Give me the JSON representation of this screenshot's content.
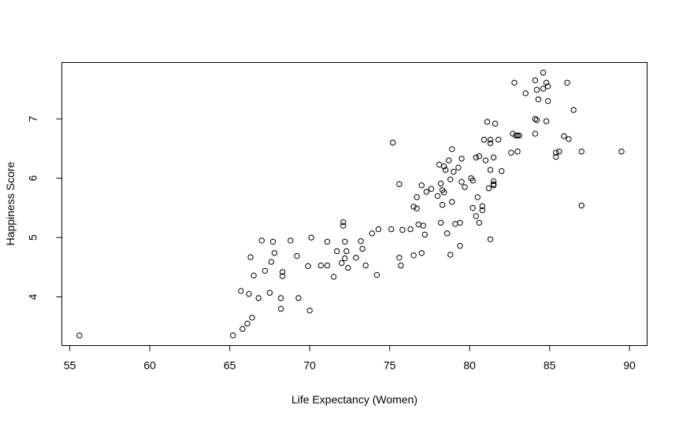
{
  "chart_data": {
    "type": "scatter",
    "title": "",
    "xlabel": "Life Expectancy (Women)",
    "ylabel": "Happiness Score",
    "xlim": [
      54.5,
      91.1
    ],
    "ylim": [
      3.18,
      7.95
    ],
    "xticks": [
      55,
      60,
      65,
      70,
      75,
      80,
      85,
      90
    ],
    "yticks": [
      4,
      5,
      6,
      7
    ],
    "grid": false,
    "marker": "open-circle",
    "marker_color": "#000000",
    "points": [
      {
        "x": 55.6,
        "y": 3.35
      },
      {
        "x": 65.2,
        "y": 3.35
      },
      {
        "x": 65.8,
        "y": 3.46
      },
      {
        "x": 66.1,
        "y": 3.55
      },
      {
        "x": 66.4,
        "y": 3.65
      },
      {
        "x": 68.2,
        "y": 3.8
      },
      {
        "x": 70.0,
        "y": 3.77
      },
      {
        "x": 69.3,
        "y": 3.98
      },
      {
        "x": 68.2,
        "y": 3.98
      },
      {
        "x": 66.8,
        "y": 3.98
      },
      {
        "x": 66.2,
        "y": 4.05
      },
      {
        "x": 65.7,
        "y": 4.1
      },
      {
        "x": 67.5,
        "y": 4.07
      },
      {
        "x": 66.5,
        "y": 4.36
      },
      {
        "x": 68.3,
        "y": 4.35
      },
      {
        "x": 68.3,
        "y": 4.42
      },
      {
        "x": 67.2,
        "y": 4.44
      },
      {
        "x": 66.3,
        "y": 4.67
      },
      {
        "x": 67.6,
        "y": 4.59
      },
      {
        "x": 67.8,
        "y": 4.74
      },
      {
        "x": 67.0,
        "y": 4.95
      },
      {
        "x": 67.7,
        "y": 4.93
      },
      {
        "x": 68.8,
        "y": 4.95
      },
      {
        "x": 69.2,
        "y": 4.69
      },
      {
        "x": 69.9,
        "y": 4.52
      },
      {
        "x": 70.1,
        "y": 5.0
      },
      {
        "x": 70.7,
        "y": 4.53
      },
      {
        "x": 71.1,
        "y": 4.53
      },
      {
        "x": 71.1,
        "y": 4.93
      },
      {
        "x": 71.5,
        "y": 4.34
      },
      {
        "x": 71.7,
        "y": 4.77
      },
      {
        "x": 72.0,
        "y": 4.57
      },
      {
        "x": 72.2,
        "y": 4.65
      },
      {
        "x": 72.4,
        "y": 4.49
      },
      {
        "x": 72.3,
        "y": 4.77
      },
      {
        "x": 72.2,
        "y": 4.93
      },
      {
        "x": 72.1,
        "y": 5.2
      },
      {
        "x": 72.1,
        "y": 5.26
      },
      {
        "x": 72.9,
        "y": 4.66
      },
      {
        "x": 73.2,
        "y": 4.94
      },
      {
        "x": 73.3,
        "y": 4.81
      },
      {
        "x": 73.5,
        "y": 4.53
      },
      {
        "x": 73.9,
        "y": 5.07
      },
      {
        "x": 74.2,
        "y": 4.37
      },
      {
        "x": 74.3,
        "y": 5.14
      },
      {
        "x": 75.1,
        "y": 5.14
      },
      {
        "x": 75.2,
        "y": 6.6
      },
      {
        "x": 75.6,
        "y": 5.9
      },
      {
        "x": 75.6,
        "y": 4.66
      },
      {
        "x": 75.7,
        "y": 4.53
      },
      {
        "x": 75.8,
        "y": 5.13
      },
      {
        "x": 76.3,
        "y": 5.14
      },
      {
        "x": 76.5,
        "y": 5.52
      },
      {
        "x": 76.5,
        "y": 4.7
      },
      {
        "x": 76.7,
        "y": 5.49
      },
      {
        "x": 76.7,
        "y": 5.68
      },
      {
        "x": 76.8,
        "y": 5.22
      },
      {
        "x": 77.0,
        "y": 5.88
      },
      {
        "x": 77.0,
        "y": 4.74
      },
      {
        "x": 77.1,
        "y": 5.2
      },
      {
        "x": 77.2,
        "y": 5.05
      },
      {
        "x": 77.3,
        "y": 5.77
      },
      {
        "x": 77.6,
        "y": 5.82
      },
      {
        "x": 78.0,
        "y": 5.7
      },
      {
        "x": 78.1,
        "y": 6.23
      },
      {
        "x": 78.2,
        "y": 5.25
      },
      {
        "x": 78.2,
        "y": 5.91
      },
      {
        "x": 78.3,
        "y": 5.8
      },
      {
        "x": 78.3,
        "y": 5.55
      },
      {
        "x": 78.4,
        "y": 5.76
      },
      {
        "x": 78.4,
        "y": 6.2
      },
      {
        "x": 78.5,
        "y": 6.14
      },
      {
        "x": 78.6,
        "y": 5.07
      },
      {
        "x": 78.7,
        "y": 6.3
      },
      {
        "x": 78.8,
        "y": 5.98
      },
      {
        "x": 78.8,
        "y": 4.71
      },
      {
        "x": 78.9,
        "y": 6.49
      },
      {
        "x": 78.9,
        "y": 5.6
      },
      {
        "x": 79.0,
        "y": 6.11
      },
      {
        "x": 79.1,
        "y": 5.23
      },
      {
        "x": 79.3,
        "y": 6.18
      },
      {
        "x": 79.4,
        "y": 4.86
      },
      {
        "x": 79.4,
        "y": 5.25
      },
      {
        "x": 79.5,
        "y": 5.94
      },
      {
        "x": 79.5,
        "y": 6.33
      },
      {
        "x": 79.7,
        "y": 5.85
      },
      {
        "x": 80.1,
        "y": 6.0
      },
      {
        "x": 80.2,
        "y": 5.96
      },
      {
        "x": 80.2,
        "y": 5.5
      },
      {
        "x": 80.4,
        "y": 5.36
      },
      {
        "x": 80.4,
        "y": 6.35
      },
      {
        "x": 80.5,
        "y": 5.68
      },
      {
        "x": 80.6,
        "y": 5.25
      },
      {
        "x": 80.6,
        "y": 6.37
      },
      {
        "x": 80.8,
        "y": 5.46
      },
      {
        "x": 80.8,
        "y": 5.53
      },
      {
        "x": 80.9,
        "y": 6.65
      },
      {
        "x": 81.0,
        "y": 6.3
      },
      {
        "x": 81.1,
        "y": 6.95
      },
      {
        "x": 81.2,
        "y": 5.83
      },
      {
        "x": 81.3,
        "y": 6.59
      },
      {
        "x": 81.3,
        "y": 4.97
      },
      {
        "x": 81.3,
        "y": 6.14
      },
      {
        "x": 81.3,
        "y": 6.65
      },
      {
        "x": 81.5,
        "y": 5.9
      },
      {
        "x": 81.5,
        "y": 5.95
      },
      {
        "x": 81.5,
        "y": 5.88
      },
      {
        "x": 81.5,
        "y": 6.35
      },
      {
        "x": 81.6,
        "y": 6.92
      },
      {
        "x": 81.8,
        "y": 6.65
      },
      {
        "x": 82.0,
        "y": 6.12
      },
      {
        "x": 82.6,
        "y": 6.43
      },
      {
        "x": 82.7,
        "y": 6.75
      },
      {
        "x": 82.8,
        "y": 7.61
      },
      {
        "x": 82.9,
        "y": 6.72
      },
      {
        "x": 83.0,
        "y": 6.45
      },
      {
        "x": 83.0,
        "y": 6.72
      },
      {
        "x": 83.1,
        "y": 6.72
      },
      {
        "x": 83.5,
        "y": 7.43
      },
      {
        "x": 84.1,
        "y": 7.65
      },
      {
        "x": 84.1,
        "y": 6.75
      },
      {
        "x": 84.1,
        "y": 7.0
      },
      {
        "x": 84.2,
        "y": 7.49
      },
      {
        "x": 84.2,
        "y": 6.98
      },
      {
        "x": 84.3,
        "y": 7.33
      },
      {
        "x": 84.6,
        "y": 7.78
      },
      {
        "x": 84.6,
        "y": 7.51
      },
      {
        "x": 84.8,
        "y": 7.61
      },
      {
        "x": 84.8,
        "y": 6.96
      },
      {
        "x": 84.9,
        "y": 7.55
      },
      {
        "x": 84.9,
        "y": 7.3
      },
      {
        "x": 85.4,
        "y": 6.36
      },
      {
        "x": 85.4,
        "y": 6.43
      },
      {
        "x": 85.6,
        "y": 6.45
      },
      {
        "x": 85.9,
        "y": 6.71
      },
      {
        "x": 86.1,
        "y": 7.61
      },
      {
        "x": 86.2,
        "y": 6.66
      },
      {
        "x": 86.5,
        "y": 7.15
      },
      {
        "x": 87.0,
        "y": 6.45
      },
      {
        "x": 87.0,
        "y": 5.54
      },
      {
        "x": 89.5,
        "y": 6.45
      }
    ]
  }
}
